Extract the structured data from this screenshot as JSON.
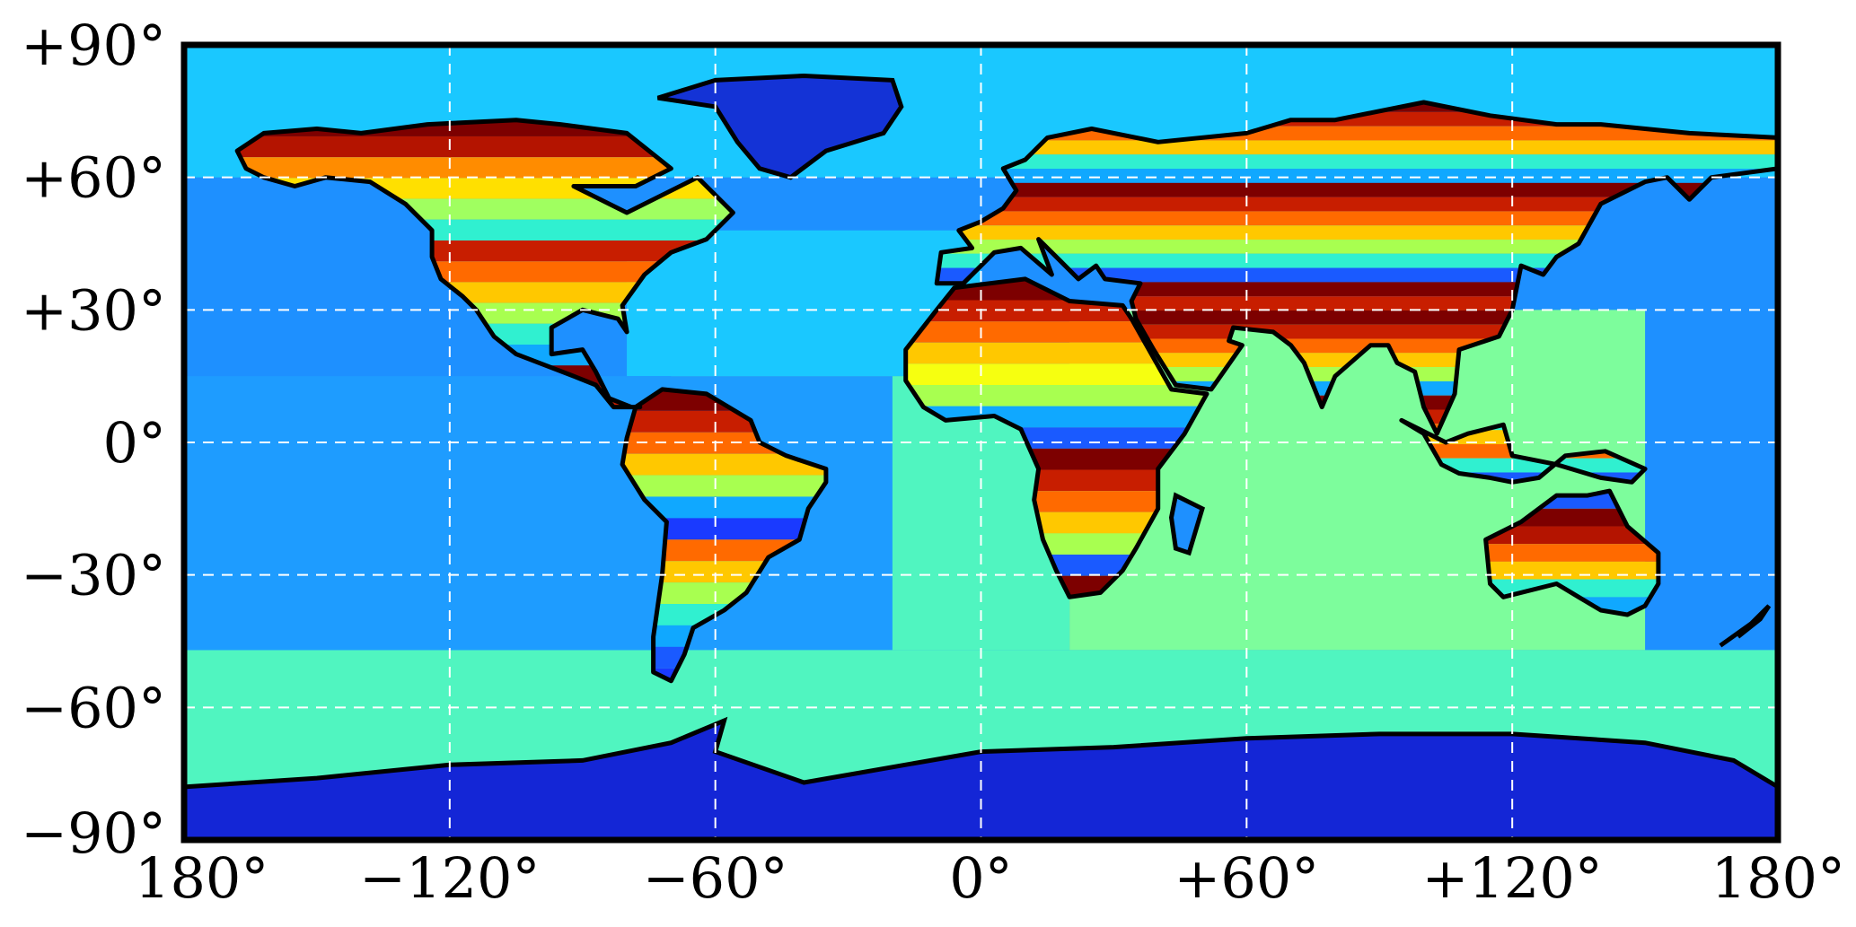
{
  "map": {
    "projection": "plate-carree",
    "lon_range": [
      -180,
      180
    ],
    "lat_range": [
      -90,
      90
    ],
    "grid": true,
    "grid_style": "white-dashed",
    "x_ticks": [
      {
        "value": -180,
        "label": "180°"
      },
      {
        "value": -120,
        "label": "−120°"
      },
      {
        "value": -60,
        "label": "−60°"
      },
      {
        "value": 0,
        "label": "0°"
      },
      {
        "value": 60,
        "label": "+60°"
      },
      {
        "value": 120,
        "label": "+120°"
      },
      {
        "value": 180,
        "label": "180°"
      }
    ],
    "y_ticks": [
      {
        "value": 90,
        "label": "+90°"
      },
      {
        "value": 60,
        "label": "+60°"
      },
      {
        "value": 30,
        "label": "+30°"
      },
      {
        "value": 0,
        "label": "0°"
      },
      {
        "value": -30,
        "label": "−30°"
      },
      {
        "value": -60,
        "label": "−60°"
      },
      {
        "value": -90,
        "label": "−90°"
      }
    ],
    "colormap": "jet",
    "colors": {
      "ocean_high_lat": "#1ac8ff",
      "ocean_mid": "#1e90ff",
      "ocean_south": "#50f5c0",
      "indian_ocean": "#7dfd9c",
      "antarctica": "#1426d6",
      "greenland": "#1433d6",
      "coastline": "#000000",
      "frame": "#000000"
    }
  }
}
